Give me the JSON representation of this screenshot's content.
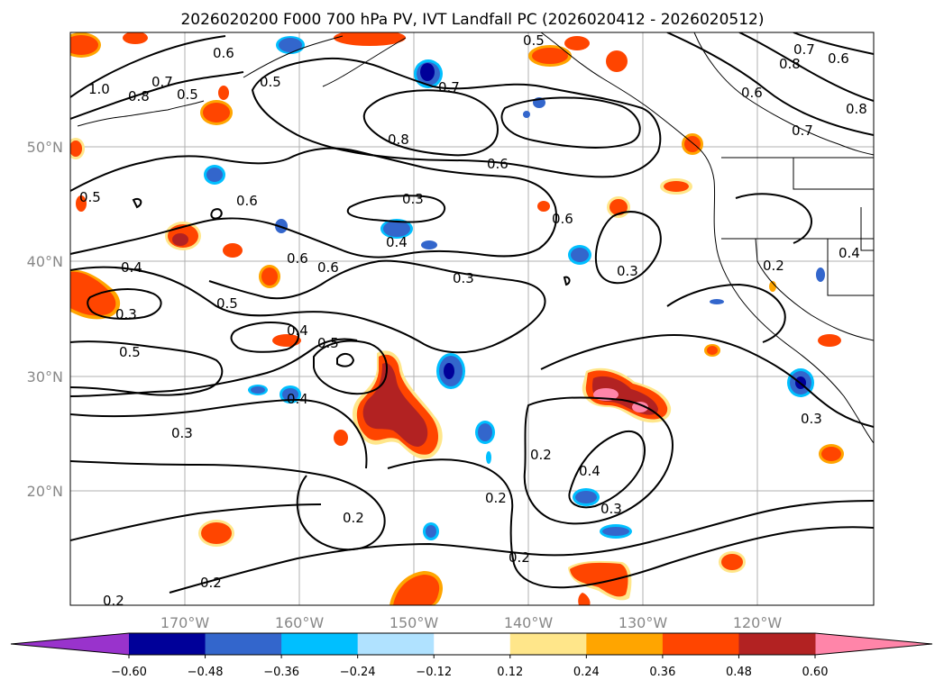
{
  "title": "2026020200 F000 700 hPa PV, IVT Landfall PC (2026020412 - 2026020512)",
  "map": {
    "lat_labels": [
      "50°N",
      "40°N",
      "30°N",
      "20°N"
    ],
    "lon_labels": [
      "170°W",
      "160°W",
      "150°W",
      "140°W",
      "130°W",
      "120°W"
    ],
    "contour_labels": [
      "0.6",
      "0.5",
      "0.7",
      "1.0",
      "0.8",
      "0.5",
      "0.7",
      "0.8",
      "0.6",
      "0.3",
      "0.5",
      "0.6",
      "0.4",
      "0.4",
      "0.6",
      "0.6",
      "0.3",
      "0.5",
      "0.3",
      "0.5",
      "0.4",
      "0.5",
      "0.6",
      "0.3",
      "0.4",
      "0.3",
      "0.2",
      "0.2",
      "0.4",
      "0.3",
      "0.2",
      "0.2",
      "0.2",
      "0.2",
      "0.2",
      "0.3",
      "0.8",
      "0.7",
      "0.6",
      "0.8",
      "0.6",
      "0.7",
      "0.4",
      "0.5"
    ]
  },
  "colorbar": {
    "ticks": [
      "−0.60",
      "−0.48",
      "−0.36",
      "−0.24",
      "−0.12",
      "0.12",
      "0.24",
      "0.36",
      "0.48",
      "0.60"
    ],
    "colors": [
      "#9933cc",
      "#000099",
      "#3366cc",
      "#00bfff",
      "#b0e2ff",
      "#ffffff",
      "#ffe68a",
      "#ffa500",
      "#ff4500",
      "#b22222",
      "#ff85a9"
    ]
  }
}
